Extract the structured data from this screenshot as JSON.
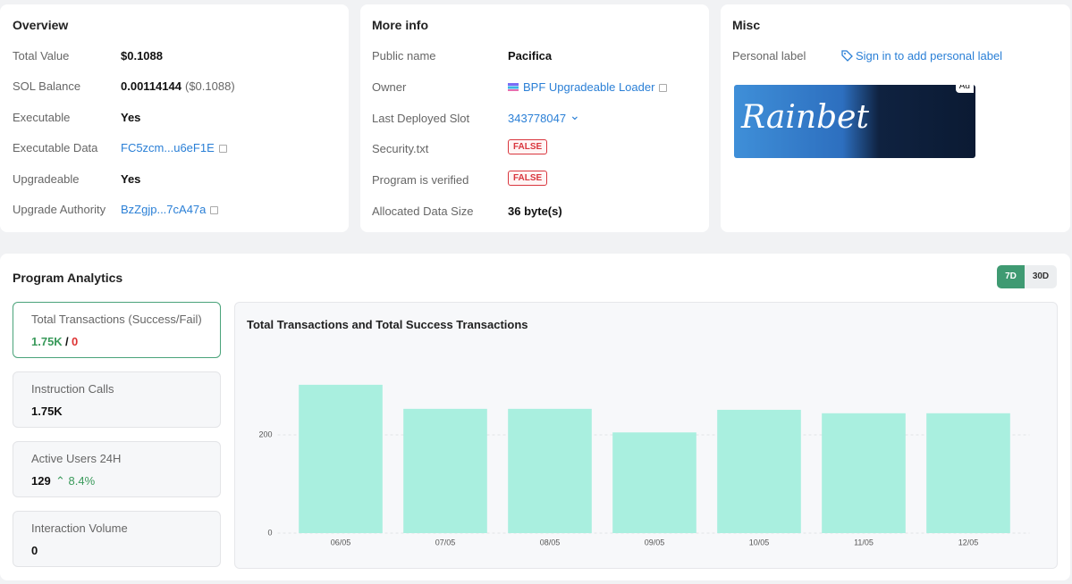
{
  "overview": {
    "title": "Overview",
    "rows": [
      {
        "label": "Total Value",
        "value": "$0.1088"
      },
      {
        "label": "SOL Balance",
        "value": "0.00114144",
        "extra": "($0.1088)"
      },
      {
        "label": "Executable",
        "value": "Yes"
      },
      {
        "label": "Executable Data",
        "link": "FC5zcm...u6eF1E"
      },
      {
        "label": "Upgradeable",
        "value": "Yes"
      },
      {
        "label": "Upgrade Authority",
        "link": "BzZgjp...7cA47a"
      }
    ]
  },
  "more_info": {
    "title": "More info",
    "rows": [
      {
        "label": "Public name",
        "value": "Pacifica"
      },
      {
        "label": "Owner",
        "link": "BPF Upgradeable Loader"
      },
      {
        "label": "Last Deployed Slot",
        "link": "343778047"
      },
      {
        "label": "Security.txt",
        "badge": "FALSE"
      },
      {
        "label": "Program is verified",
        "badge": "FALSE"
      },
      {
        "label": "Allocated Data Size",
        "value": "36 byte(s)"
      }
    ]
  },
  "misc": {
    "title": "Misc",
    "label": "Personal label",
    "link": "Sign in to add personal label",
    "ad_badge": "Ad",
    "ad_text": "Rainbet"
  },
  "analytics": {
    "title": "Program Analytics",
    "ranges": [
      "7D",
      "30D"
    ],
    "stats": [
      {
        "label": "Total Transactions (Success/Fail)",
        "success": "1.75K",
        "separator": "/",
        "fail": "0"
      },
      {
        "label": "Instruction Calls",
        "value": "1.75K"
      },
      {
        "label": "Active Users 24H",
        "value": "129",
        "change": "8.4%"
      },
      {
        "label": "Interaction Volume",
        "value": "0"
      }
    ]
  },
  "chart_data": {
    "type": "bar",
    "title": "Total Transactions and Total Success Transactions",
    "categories": [
      "06/05",
      "07/05",
      "08/05",
      "09/05",
      "10/05",
      "11/05",
      "12/05"
    ],
    "values": [
      302,
      253,
      253,
      205,
      251,
      244,
      244
    ],
    "color": "#a9efdf",
    "ylim": [
      0,
      360
    ],
    "yticks": [
      0,
      200
    ],
    "grid": true
  }
}
